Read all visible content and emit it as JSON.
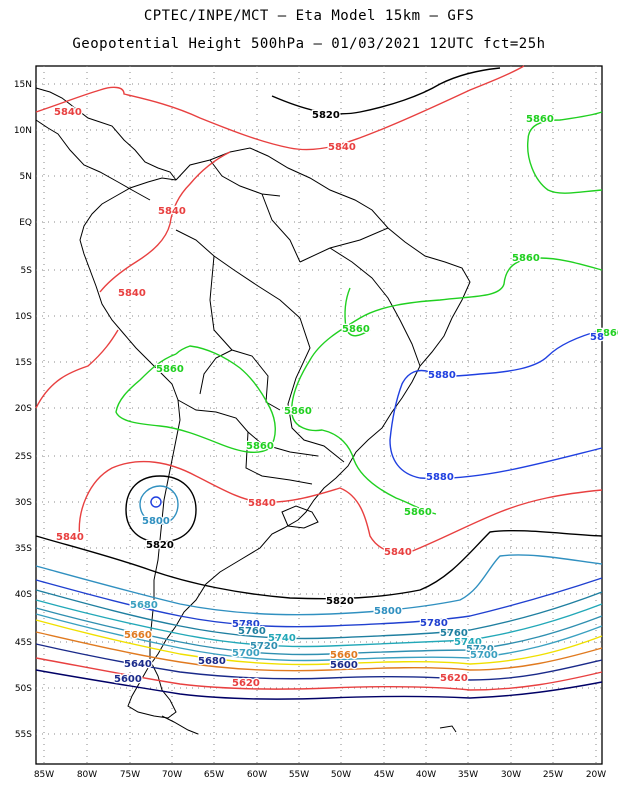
{
  "header": {
    "line1": "CPTEC/INPE/MCT –  Eta Model 15km – GFS",
    "line2": "Geopotential Height 500hPa – 01/03/2021 12UTC fct=25h"
  },
  "lat_labels": [
    "15N",
    "10N",
    "5N",
    "EQ",
    "5S",
    "10S",
    "15S",
    "20S",
    "25S",
    "30S",
    "35S",
    "40S",
    "45S",
    "50S",
    "55S"
  ],
  "lon_labels": [
    "85W",
    "80W",
    "75W",
    "70W",
    "65W",
    "60W",
    "55W",
    "50W",
    "45W",
    "40W",
    "35W",
    "30W",
    "25W",
    "20W"
  ],
  "colors": {
    "c5600": "#000066",
    "c5620": "#1a2a8a",
    "c5640": "#e07a20",
    "c5660": "#f0e000",
    "c5700": "#3aa0c0",
    "c5720": "#2f8fb0",
    "c5740": "#22a8b8",
    "c5760": "#1f7fa0",
    "c5780": "#2040d0",
    "c5800": "#3090c0",
    "c5820": "#000000",
    "c5840": "#e84040",
    "c5860": "#20d020",
    "c5880": "#2040e0",
    "land": "#000000",
    "grid": "#888888"
  },
  "contour_labels": [
    {
      "text": "5820",
      "color": "c5820"
    },
    {
      "text": "5840",
      "color": "c5840"
    },
    {
      "text": "5840",
      "color": "c5840"
    },
    {
      "text": "5840",
      "color": "c5840"
    },
    {
      "text": "5840",
      "color": "c5840"
    },
    {
      "text": "5840",
      "color": "c5840"
    },
    {
      "text": "5840",
      "color": "c5840"
    },
    {
      "text": "5840",
      "color": "c5840"
    },
    {
      "text": "5860",
      "color": "c5860"
    },
    {
      "text": "5860",
      "color": "c5860"
    },
    {
      "text": "5860",
      "color": "c5860"
    },
    {
      "text": "5860",
      "color": "c5860"
    },
    {
      "text": "5860",
      "color": "c5860"
    },
    {
      "text": "5860",
      "color": "c5860"
    },
    {
      "text": "5860",
      "color": "c5860"
    },
    {
      "text": "5860",
      "color": "c5860"
    },
    {
      "text": "5880",
      "color": "c5880"
    },
    {
      "text": "5880",
      "color": "c5880"
    },
    {
      "text": "58",
      "color": "c5880"
    },
    {
      "text": "5800",
      "color": "c5800"
    },
    {
      "text": "5820",
      "color": "c5820"
    },
    {
      "text": "5820",
      "color": "c5820"
    },
    {
      "text": "5800",
      "color": "c5800"
    },
    {
      "text": "5780",
      "color": "c5780"
    },
    {
      "text": "5780",
      "color": "c5780"
    },
    {
      "text": "5760",
      "color": "c5760"
    },
    {
      "text": "5760",
      "color": "c5760"
    },
    {
      "text": "5740",
      "color": "c5740"
    },
    {
      "text": "5740",
      "color": "c5740"
    },
    {
      "text": "5720",
      "color": "c5720"
    },
    {
      "text": "5720",
      "color": "c5720"
    },
    {
      "text": "5700",
      "color": "c5700"
    },
    {
      "text": "5700",
      "color": "c5700"
    },
    {
      "text": "5680",
      "color": "c5700"
    },
    {
      "text": "5660",
      "color": "c5640"
    },
    {
      "text": "5660",
      "color": "c5640"
    },
    {
      "text": "5680",
      "color": "c5620"
    },
    {
      "text": "5600",
      "color": "c5620"
    },
    {
      "text": "5640",
      "color": "c5620"
    },
    {
      "text": "5620",
      "color": "c5840"
    },
    {
      "text": "5620",
      "color": "c5840"
    },
    {
      "text": "5600",
      "color": "c5620"
    }
  ]
}
